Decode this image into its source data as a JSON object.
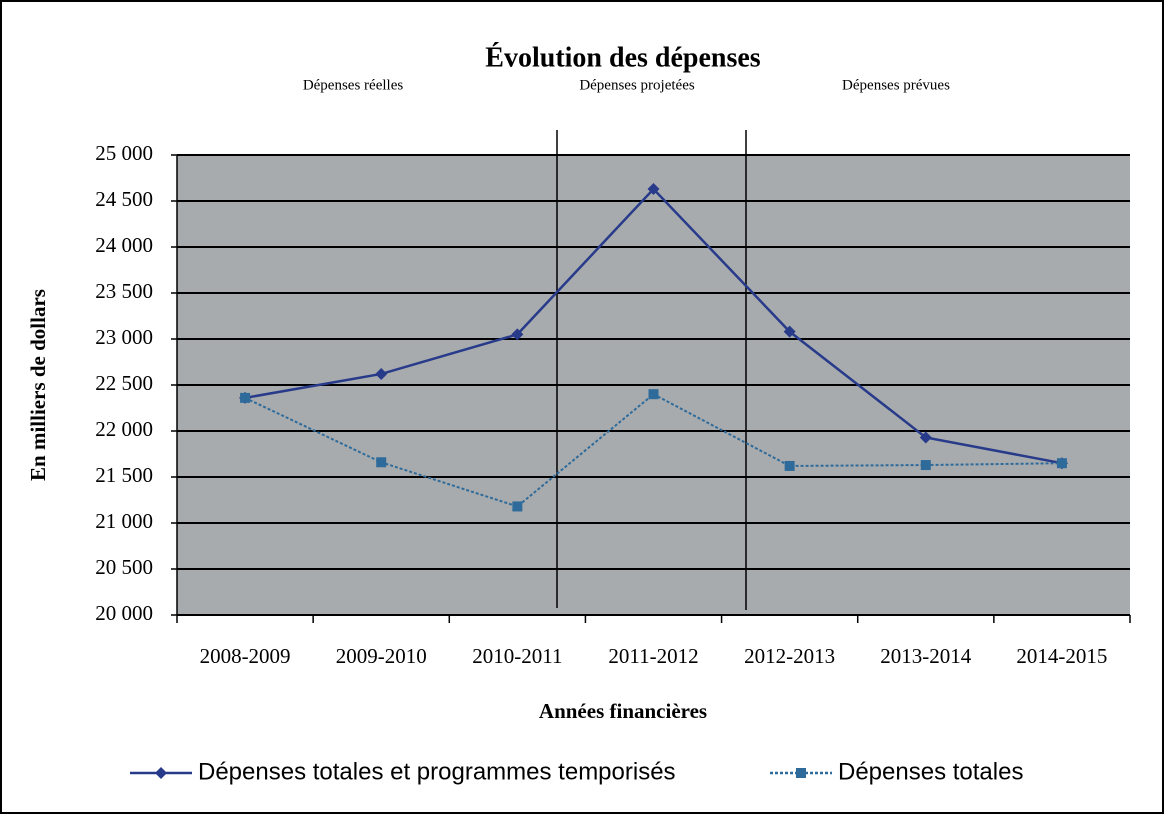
{
  "chart_data": {
    "type": "line",
    "title": "Évolution des dépenses",
    "annotations": [
      "Dépenses réelles",
      "Dépenses projetées",
      "Dépenses prévues"
    ],
    "x_label": "Années financières",
    "y_label": "En milliers de dollars",
    "categories": [
      "2008-2009",
      "2009-2010",
      "2010-2011",
      "2011-2012",
      "2012-2013",
      "2013-2014",
      "2014-2015"
    ],
    "series": [
      {
        "name": "Dépenses totales et programmes temporisés",
        "color": "#283a8a",
        "marker": "diamond",
        "dashed": false,
        "values": [
          22360,
          22620,
          23050,
          24630,
          23080,
          21930,
          21650
        ]
      },
      {
        "name": "Dépenses totales",
        "color": "#2f6b9a",
        "marker": "square",
        "dashed": true,
        "values": [
          22360,
          21660,
          21180,
          22400,
          21620,
          21630,
          21650
        ]
      }
    ],
    "ylim": [
      20000,
      25000
    ],
    "yticks": [
      {
        "value": 20000,
        "label": "20 000"
      },
      {
        "value": 20500,
        "label": "20 500"
      },
      {
        "value": 21000,
        "label": "21 000"
      },
      {
        "value": 21500,
        "label": "21 500"
      },
      {
        "value": 22000,
        "label": "22 000"
      },
      {
        "value": 22500,
        "label": "22 500"
      },
      {
        "value": 23000,
        "label": "23 000"
      },
      {
        "value": 23500,
        "label": "23 500"
      },
      {
        "value": 24000,
        "label": "24 000"
      },
      {
        "value": 24500,
        "label": "24 500"
      },
      {
        "value": 25000,
        "label": "25 000"
      }
    ],
    "grid": true
  }
}
